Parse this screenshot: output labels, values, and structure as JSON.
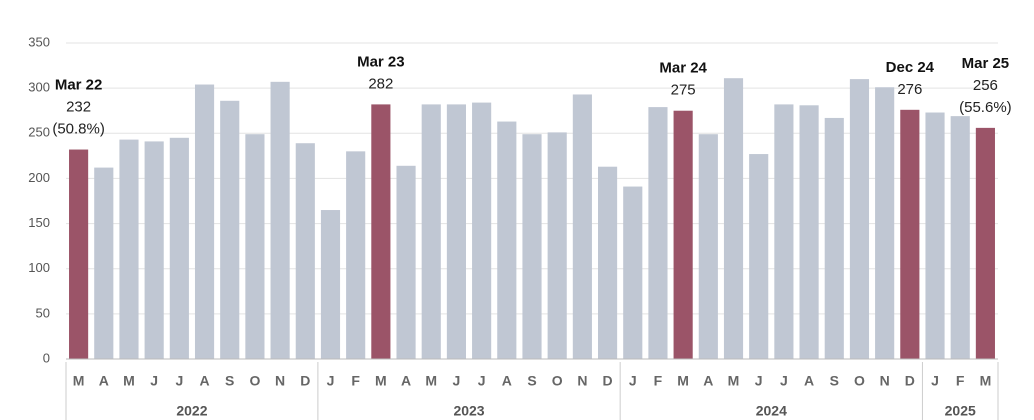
{
  "chart_data": {
    "type": "bar",
    "color": "#c0c7d3",
    "highlight_color": "#9b5468",
    "ylim": [
      0,
      350
    ],
    "yticks": [
      0,
      50,
      100,
      150,
      200,
      250,
      300,
      350
    ],
    "grid": true,
    "groups": [
      {
        "label": "2022",
        "categories": [
          "M",
          "A",
          "M",
          "J",
          "J",
          "A",
          "S",
          "O",
          "N",
          "D"
        ],
        "values": [
          232,
          212,
          243,
          241,
          245,
          304,
          286,
          249,
          307,
          239
        ],
        "annotations": [
          {
            "title": "Mar 22",
            "note": "(50.8%)"
          },
          null,
          null,
          null,
          null,
          null,
          null,
          null,
          null,
          null
        ]
      },
      {
        "label": "2023",
        "categories": [
          "J",
          "F",
          "M",
          "A",
          "M",
          "J",
          "J",
          "A",
          "S",
          "O",
          "N",
          "D"
        ],
        "values": [
          165,
          230,
          282,
          214,
          282,
          282,
          284,
          263,
          249,
          251,
          293,
          213
        ],
        "annotations": [
          null,
          null,
          {
            "title": "Mar 23"
          },
          null,
          null,
          null,
          null,
          null,
          null,
          null,
          null,
          null
        ]
      },
      {
        "label": "2024",
        "categories": [
          "J",
          "F",
          "M",
          "A",
          "M",
          "J",
          "J",
          "A",
          "S",
          "O",
          "N",
          "D"
        ],
        "values": [
          191,
          279,
          275,
          249,
          311,
          227,
          282,
          281,
          267,
          310,
          301,
          276
        ],
        "annotations": [
          null,
          null,
          {
            "title": "Mar 24"
          },
          null,
          null,
          null,
          null,
          null,
          null,
          null,
          null,
          {
            "title": "Dec 24"
          }
        ]
      },
      {
        "label": "2025",
        "categories": [
          "J",
          "F",
          "M"
        ],
        "values": [
          273,
          269,
          256
        ],
        "annotations": [
          null,
          null,
          {
            "title": "Mar 25",
            "note": "(55.6%)"
          }
        ]
      }
    ]
  }
}
